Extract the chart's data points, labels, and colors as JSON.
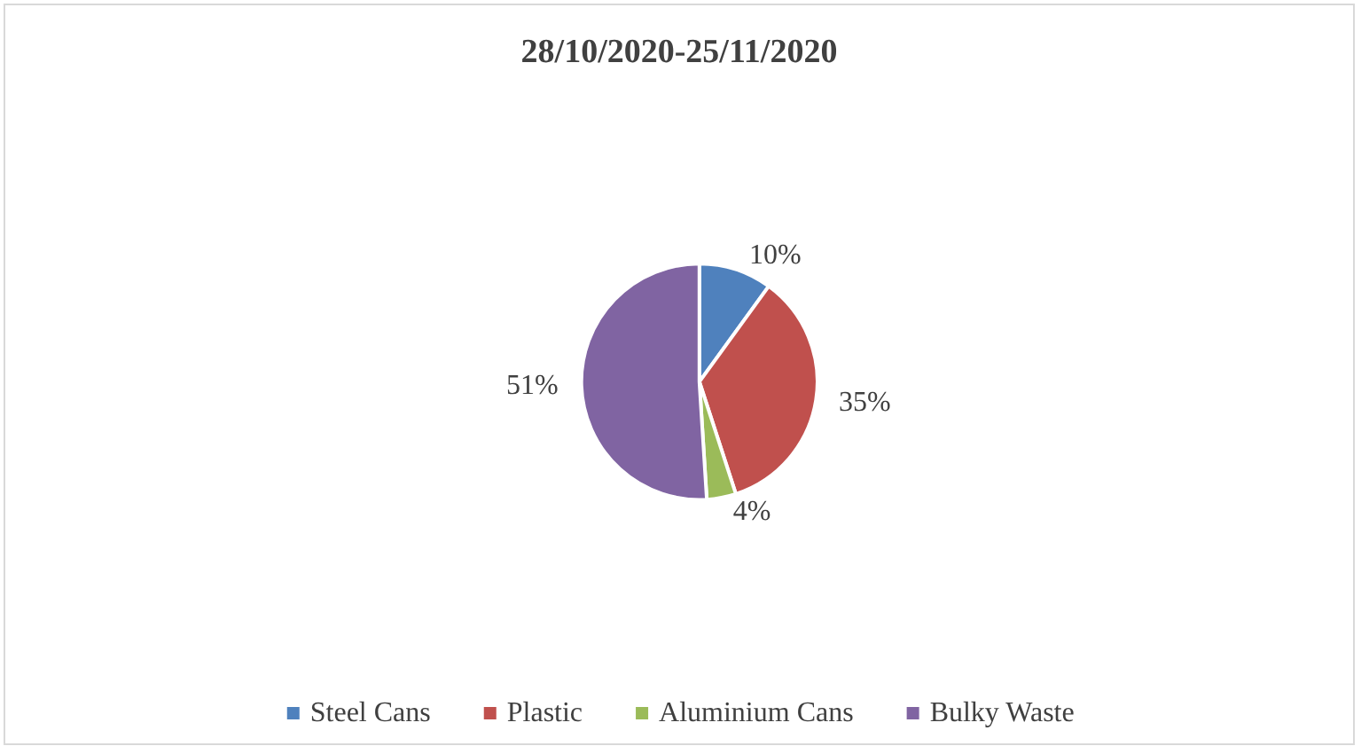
{
  "chart_data": {
    "type": "pie",
    "title": "28/10/2020-25/11/2020",
    "categories": [
      "Steel Cans",
      "Plastic",
      "Aluminium Cans",
      "Bulky Waste"
    ],
    "values": [
      10,
      35,
      4,
      51
    ],
    "value_labels": [
      "10%",
      "35%",
      "4%",
      "51%"
    ],
    "colors": [
      "#4f81bd",
      "#c0504d",
      "#9bbb59",
      "#8064a2"
    ],
    "legend": "bottom"
  }
}
